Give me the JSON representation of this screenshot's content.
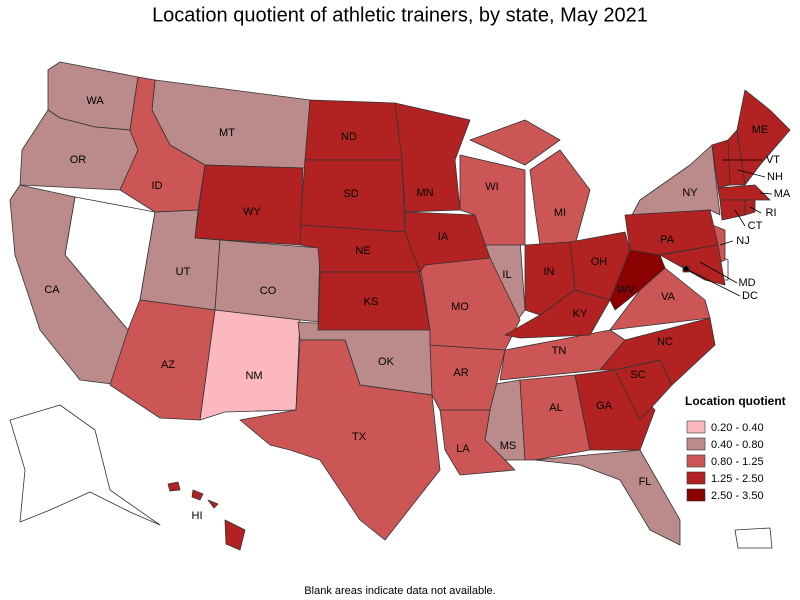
{
  "title": "Location quotient of athletic trainers, by state, May 2021",
  "legend": {
    "title": "Location quotient",
    "bins": [
      {
        "label": "0.20 - 0.40",
        "color": "#fbb9bf",
        "states": [
          "NM"
        ]
      },
      {
        "label": "0.40 - 0.80",
        "color": "#bb8a8a",
        "states": [
          "WA",
          "OR",
          "CA",
          "MT",
          "UT",
          "CO",
          "OK",
          "IL",
          "MS",
          "FL",
          "NY"
        ]
      },
      {
        "label": "0.80 - 1.25",
        "color": "#cc5656",
        "states": [
          "ID",
          "AZ",
          "TX",
          "LA",
          "AR",
          "MO",
          "WI",
          "MI",
          "TN",
          "AL",
          "VA",
          "NJ"
        ]
      },
      {
        "label": "1.25 - 2.50",
        "color": "#b22222",
        "states": [
          "ND",
          "SD",
          "NE",
          "KS",
          "WY",
          "MN",
          "IA",
          "IN",
          "KY",
          "OH",
          "PA",
          "GA",
          "SC",
          "NC",
          "ME",
          "VT",
          "NH",
          "MA",
          "CT",
          "RI",
          "MD",
          "DC",
          "HI"
        ]
      },
      {
        "label": "2.50 - 3.50",
        "color": "#8b0000",
        "states": [
          "WV"
        ]
      }
    ]
  },
  "note": "Blank areas indicate data not available."
}
